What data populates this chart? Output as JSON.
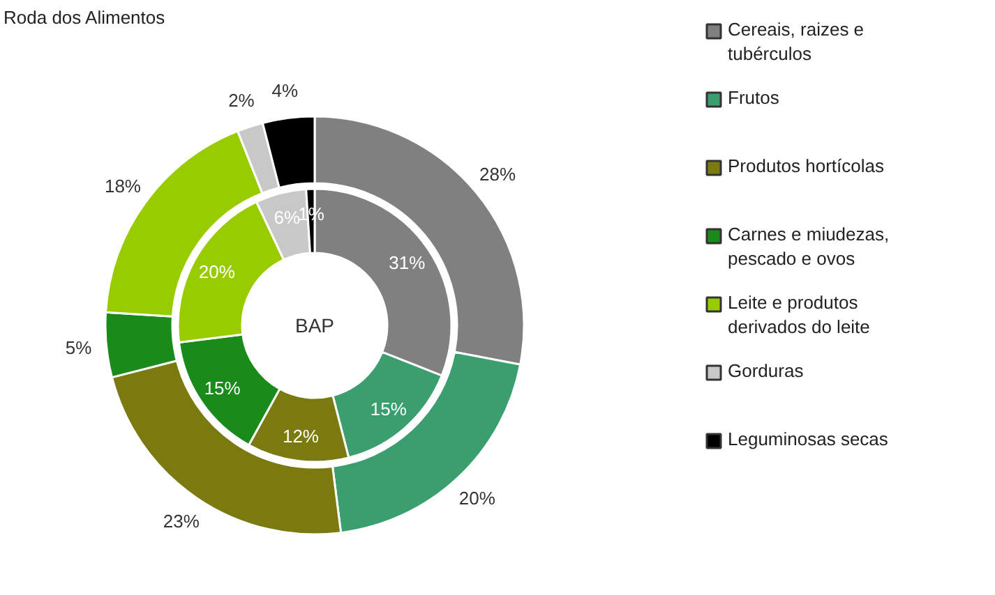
{
  "chart_data": {
    "type": "donut",
    "legend": "right",
    "categories": [
      "Cereais, raizes e tubérculos",
      "Frutos",
      "Produtos hortícolas",
      "Carnes e miudezas, pescado e ovos",
      "Leite e produtos derivados do leite",
      "Gorduras",
      "Leguminosas secas"
    ],
    "colors": [
      "#808080",
      "#3a9e6e",
      "#7a7a10",
      "#1a8a1a",
      "#99cc00",
      "#c8c8c8",
      "#000000"
    ],
    "series": [
      {
        "name": "Roda dos Alimentos",
        "values": [
          28,
          20,
          23,
          5,
          18,
          2,
          4
        ],
        "value_labels": [
          "28%",
          "20%",
          "23%",
          "5%",
          "18%",
          "2%",
          "4%"
        ]
      },
      {
        "name": "BAP",
        "values": [
          31,
          15,
          12,
          15,
          20,
          6,
          1
        ],
        "value_labels": [
          "31%",
          "15%",
          "12%",
          "15%",
          "20%",
          "6%",
          "1%"
        ]
      }
    ]
  }
}
